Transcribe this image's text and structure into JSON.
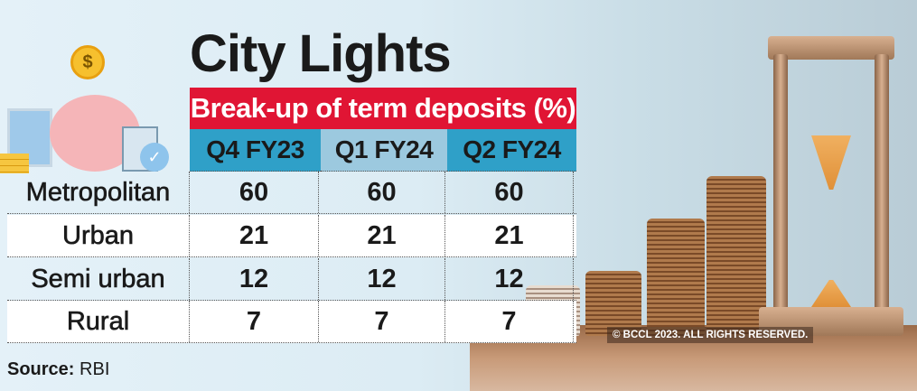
{
  "title": "City Lights",
  "subtitle": "Break-up of term deposits (%)",
  "source_label": "Source:",
  "source_value": "RBI",
  "copyright": "© BCCL 2023. ALL RIGHTS RESERVED.",
  "colors": {
    "header_red": "#e01534",
    "column_blue": "#2fa0c8",
    "column_light_blue": "#9cc9df"
  },
  "icons": [
    "dollar-coin-icon",
    "piggy-bank-icon",
    "calculator-icon",
    "checkmark-icon",
    "hourglass-image",
    "coin-stacks-image"
  ],
  "chart_data": {
    "type": "table",
    "title": "Break-up of term deposits (%)",
    "columns": [
      "Q4 FY23",
      "Q1 FY24",
      "Q2 FY24"
    ],
    "rows": [
      {
        "label": "Metropolitan",
        "values": [
          60,
          60,
          60
        ]
      },
      {
        "label": "Urban",
        "values": [
          21,
          21,
          21
        ]
      },
      {
        "label": "Semi urban",
        "values": [
          12,
          12,
          12
        ]
      },
      {
        "label": "Rural",
        "values": [
          7,
          7,
          7
        ]
      }
    ]
  }
}
